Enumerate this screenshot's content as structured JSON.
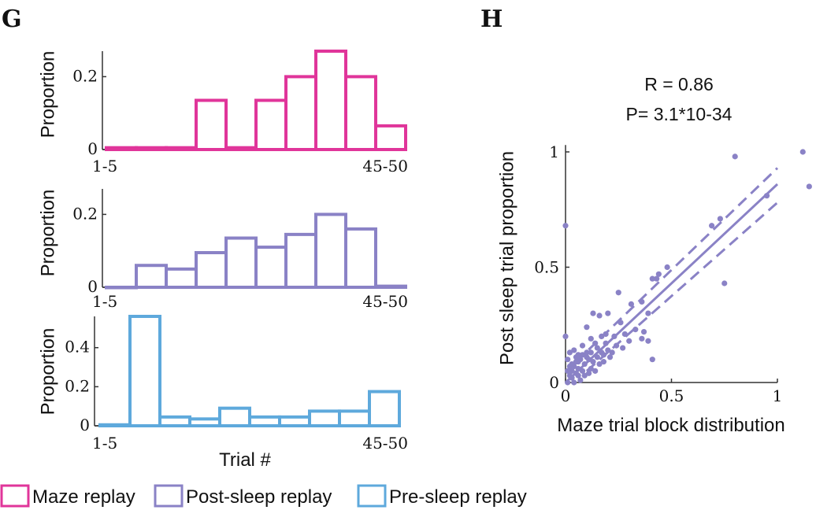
{
  "panels": {
    "g": "G",
    "h": "H"
  },
  "chart_data": [
    {
      "type": "bar",
      "panel": "G",
      "series_name": "Maze replay",
      "color": "#e0359a",
      "ylabel": "Proportion",
      "xlabel": "",
      "x_tick_labels": [
        "1-5",
        "45-50"
      ],
      "y_ticks": [
        0,
        0.2
      ],
      "y_tick_labels": [
        "0",
        "0.2"
      ],
      "ylim": [
        0,
        0.27
      ],
      "values": [
        0.005,
        0.005,
        0.005,
        0.135,
        0.005,
        0.135,
        0.2,
        0.27,
        0.2,
        0.065
      ]
    },
    {
      "type": "bar",
      "panel": "G",
      "series_name": "Post-sleep replay",
      "color": "#8a82c6",
      "ylabel": "Proportion",
      "xlabel": "",
      "x_tick_labels": [
        "1-5",
        "45-50"
      ],
      "y_ticks": [
        0,
        0.2
      ],
      "y_tick_labels": [
        "0",
        "0.2"
      ],
      "ylim": [
        0,
        0.27
      ],
      "values": [
        0,
        0.06,
        0.05,
        0.095,
        0.135,
        0.11,
        0.145,
        0.2,
        0.16,
        0.003
      ]
    },
    {
      "type": "bar",
      "panel": "G",
      "series_name": "Pre-sleep replay",
      "color": "#5ea9dc",
      "ylabel": "Proportion",
      "xlabel": "Trial #",
      "x_tick_labels": [
        "1-5",
        "45-50"
      ],
      "y_ticks": [
        0,
        0.2,
        0.4
      ],
      "y_tick_labels": [
        "0",
        "0.2",
        "0.4"
      ],
      "ylim": [
        0,
        0.56
      ],
      "values": [
        0.005,
        0.56,
        0.045,
        0.035,
        0.09,
        0.045,
        0.045,
        0.075,
        0.075,
        0.175
      ]
    },
    {
      "type": "scatter",
      "panel": "H",
      "title_lines": [
        "R = 0.86",
        "P= 3.1*10-34"
      ],
      "xlabel": "Maze trial block distribution",
      "ylabel": "Post sleep trial proportion",
      "xlim": [
        0,
        1.16
      ],
      "ylim": [
        0,
        1.03
      ],
      "x_ticks": [
        0,
        0.5,
        1
      ],
      "x_tick_labels": [
        "0",
        "0.5",
        "1"
      ],
      "y_ticks": [
        0,
        0.5,
        1
      ],
      "y_tick_labels": [
        "0",
        "0.5",
        "1"
      ],
      "color": "#8a82c6",
      "fit_line": {
        "slope": 0.86,
        "intercept": 0.0,
        "x_range": [
          0,
          1
        ]
      },
      "ci_upper": {
        "x_range": [
          0.05,
          1
        ],
        "y_range": [
          0.09,
          0.93
        ]
      },
      "ci_lower": {
        "x_range": [
          0.1,
          1
        ],
        "y_range": [
          0.05,
          0.78
        ]
      },
      "points": [
        [
          0.0,
          0.68
        ],
        [
          0.0,
          0.2
        ],
        [
          0.8,
          0.98
        ],
        [
          1.12,
          1.0
        ],
        [
          1.15,
          0.85
        ],
        [
          0.95,
          0.81
        ],
        [
          0.73,
          0.71
        ],
        [
          0.69,
          0.68
        ],
        [
          0.75,
          0.43
        ],
        [
          0.48,
          0.5
        ],
        [
          0.44,
          0.47
        ],
        [
          0.43,
          0.45
        ],
        [
          0.41,
          0.45
        ],
        [
          0.25,
          0.39
        ],
        [
          0.31,
          0.34
        ],
        [
          0.36,
          0.35
        ],
        [
          0.39,
          0.3
        ],
        [
          0.2,
          0.3
        ],
        [
          0.16,
          0.29
        ],
        [
          0.13,
          0.3
        ],
        [
          0.1,
          0.24
        ],
        [
          0.19,
          0.21
        ],
        [
          0.26,
          0.26
        ],
        [
          0.33,
          0.23
        ],
        [
          0.37,
          0.22
        ],
        [
          0.36,
          0.19
        ],
        [
          0.39,
          0.18
        ],
        [
          0.41,
          0.1
        ],
        [
          0.3,
          0.18
        ],
        [
          0.27,
          0.15
        ],
        [
          0.24,
          0.16
        ],
        [
          0.21,
          0.11
        ],
        [
          0.17,
          0.13
        ],
        [
          0.15,
          0.15
        ],
        [
          0.14,
          0.17
        ],
        [
          0.12,
          0.19
        ],
        [
          0.1,
          0.13
        ],
        [
          0.08,
          0.16
        ],
        [
          0.06,
          0.12
        ],
        [
          0.04,
          0.14
        ],
        [
          0.02,
          0.13
        ],
        [
          0.01,
          0.1
        ],
        [
          0.03,
          0.08
        ],
        [
          0.05,
          0.09
        ],
        [
          0.07,
          0.1
        ],
        [
          0.09,
          0.08
        ],
        [
          0.11,
          0.1
        ],
        [
          0.13,
          0.09
        ],
        [
          0.15,
          0.11
        ],
        [
          0.18,
          0.12
        ],
        [
          0.2,
          0.14
        ],
        [
          0.22,
          0.13
        ],
        [
          0.16,
          0.08
        ],
        [
          0.12,
          0.06
        ],
        [
          0.08,
          0.05
        ],
        [
          0.05,
          0.04
        ],
        [
          0.02,
          0.03
        ],
        [
          0.01,
          0.05
        ],
        [
          0.03,
          0.02
        ],
        [
          0.06,
          0.06
        ],
        [
          0.09,
          0.03
        ],
        [
          0.11,
          0.04
        ],
        [
          0.14,
          0.05
        ],
        [
          0.04,
          0.0
        ],
        [
          0.07,
          0.01
        ],
        [
          0.01,
          0.0
        ],
        [
          0.02,
          0.07
        ],
        [
          0.05,
          0.11
        ],
        [
          0.08,
          0.12
        ],
        [
          0.1,
          0.11
        ],
        [
          0.12,
          0.13
        ],
        [
          0.03,
          0.05
        ],
        [
          0.06,
          0.03
        ],
        [
          0.18,
          0.09
        ],
        [
          0.23,
          0.2
        ],
        [
          0.28,
          0.21
        ],
        [
          0.19,
          0.17
        ],
        [
          0.17,
          0.2
        ],
        [
          0.06,
          0.09
        ],
        [
          0.04,
          0.07
        ]
      ]
    }
  ],
  "legend": [
    {
      "label": "Maze replay",
      "color": "#e0359a"
    },
    {
      "label": "Post-sleep replay",
      "color": "#8a82c6"
    },
    {
      "label": "Pre-sleep replay",
      "color": "#5ea9dc"
    }
  ]
}
